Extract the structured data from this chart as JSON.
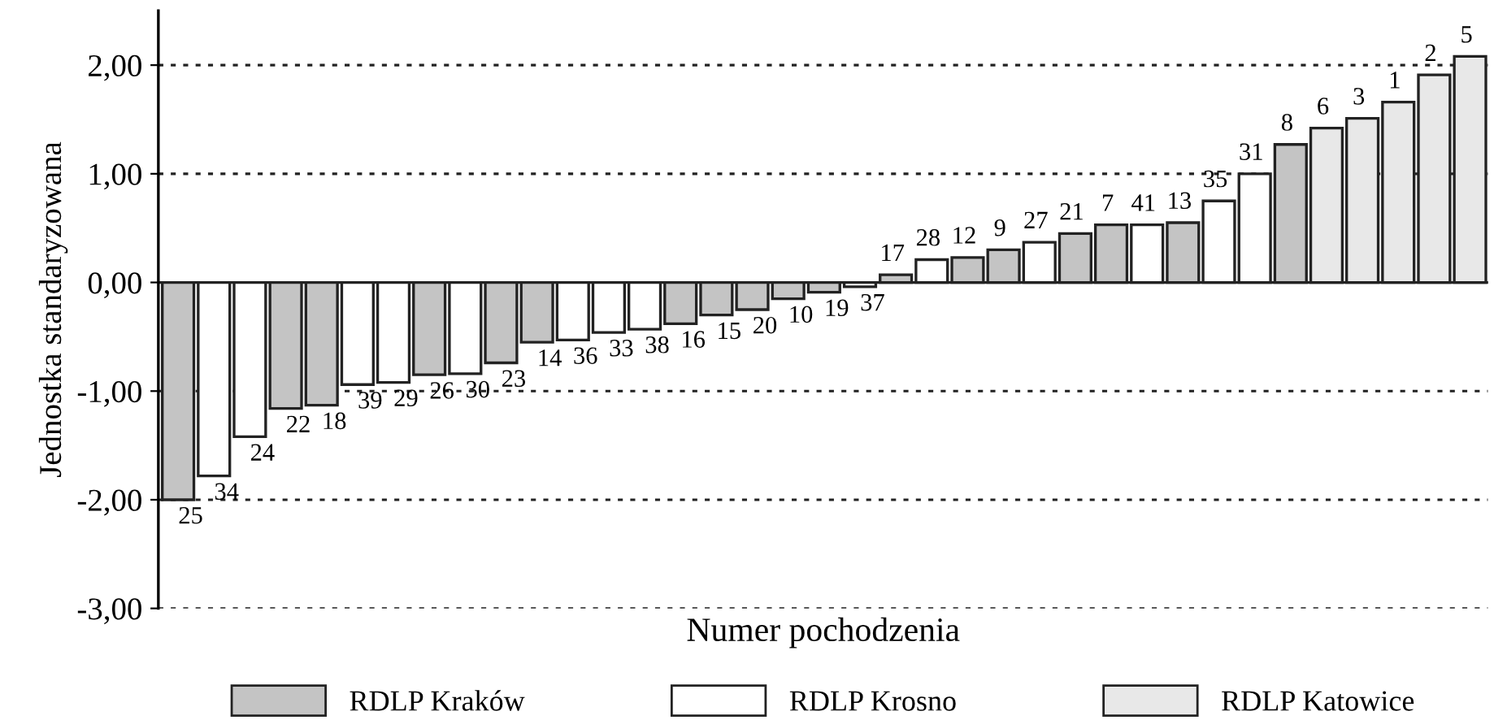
{
  "chart_data": {
    "type": "bar",
    "ylabel": "Jednostka standaryzowana",
    "xlabel": "Numer pochodzenia",
    "categories": [
      "25",
      "34",
      "24",
      "22",
      "18",
      "39",
      "29",
      "26",
      "30",
      "23",
      "14",
      "36",
      "33",
      "38",
      "16",
      "15",
      "20",
      "10",
      "19",
      "37",
      "17",
      "28",
      "12",
      "9",
      "27",
      "21",
      "7",
      "41",
      "13",
      "35",
      "31",
      "8",
      "6",
      "3",
      "1",
      "2",
      "5"
    ],
    "series": [
      {
        "name": "RDLP Kraków",
        "color": "#c4c4c4",
        "values": [
          -2.0,
          null,
          null,
          -1.16,
          -1.13,
          null,
          null,
          -0.85,
          null,
          -0.74,
          -0.55,
          null,
          null,
          null,
          -0.38,
          -0.3,
          -0.25,
          -0.15,
          -0.09,
          null,
          0.07,
          null,
          0.23,
          0.3,
          null,
          0.45,
          0.53,
          null,
          0.55,
          null,
          null,
          1.27,
          null,
          null,
          null,
          null,
          null
        ]
      },
      {
        "name": "RDLP Krosno",
        "color": "#ffffff",
        "values": [
          null,
          -1.78,
          -1.42,
          null,
          null,
          -0.94,
          -0.92,
          null,
          -0.84,
          null,
          null,
          -0.53,
          -0.46,
          -0.43,
          null,
          null,
          null,
          null,
          null,
          -0.04,
          null,
          0.21,
          null,
          null,
          0.37,
          null,
          null,
          0.53,
          null,
          0.75,
          1.0,
          null,
          null,
          null,
          null,
          null,
          null
        ]
      },
      {
        "name": "RDLP Katowice",
        "color": "#e8e8e8",
        "values": [
          null,
          null,
          null,
          null,
          null,
          null,
          null,
          null,
          null,
          null,
          null,
          null,
          null,
          null,
          null,
          null,
          null,
          null,
          null,
          null,
          null,
          null,
          null,
          null,
          null,
          null,
          null,
          null,
          null,
          null,
          null,
          null,
          1.42,
          1.51,
          1.66,
          1.91,
          2.08
        ]
      }
    ],
    "ylim": [
      -3,
      2.5
    ],
    "yticks": [
      {
        "value": -3,
        "label": "-3,00"
      },
      {
        "value": -2,
        "label": "-2,00"
      },
      {
        "value": -1,
        "label": "-1,00"
      },
      {
        "value": 0,
        "label": "0,00"
      },
      {
        "value": 1,
        "label": "1,00"
      },
      {
        "value": 2,
        "label": "2,00"
      }
    ],
    "grid": "y",
    "legend": "bottom"
  }
}
